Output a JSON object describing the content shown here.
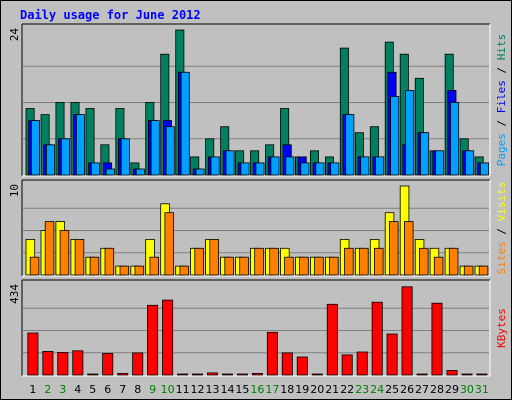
{
  "chart_data": {
    "type": "bar",
    "title": "Daily usage for June 2012",
    "categories": [
      "1",
      "2",
      "3",
      "4",
      "5",
      "6",
      "7",
      "8",
      "9",
      "10",
      "11",
      "12",
      "13",
      "14",
      "15",
      "16",
      "17",
      "18",
      "19",
      "20",
      "21",
      "22",
      "23",
      "24",
      "25",
      "26",
      "27",
      "28",
      "29",
      "30",
      "31"
    ],
    "weekend_days": [
      "2",
      "3",
      "9",
      "10",
      "16",
      "17",
      "23",
      "24",
      "30",
      "31"
    ],
    "panels": [
      {
        "id": "pages-files-hits",
        "ymax_label": "24",
        "ymax": 24,
        "right_label": [
          {
            "text": "Pages",
            "color": "#00a0ff"
          },
          {
            "text": " / ",
            "color": "#000000"
          },
          {
            "text": "Files",
            "color": "#0000ff"
          },
          {
            "text": " / ",
            "color": "#000000"
          },
          {
            "text": "Hits",
            "color": "#008060"
          }
        ],
        "series": [
          {
            "name": "Hits",
            "color": "#008060",
            "values": [
              11,
              10,
              12,
              12,
              11,
              5,
              11,
              2,
              12,
              20,
              24,
              3,
              6,
              8,
              4,
              4,
              5,
              11,
              3,
              4,
              3,
              21,
              7,
              8,
              22,
              20,
              16,
              4,
              20,
              6,
              3
            ]
          },
          {
            "name": "Files",
            "color": "#0000ff",
            "values": [
              9,
              5,
              6,
              10,
              2,
              2,
              6,
              1,
              9,
              9,
              17,
              1,
              3,
              4,
              2,
              2,
              3,
              5,
              3,
              2,
              2,
              10,
              3,
              3,
              17,
              5,
              7,
              4,
              14,
              4,
              2
            ]
          },
          {
            "name": "Pages",
            "color": "#00a0ff",
            "values": [
              9,
              5,
              6,
              10,
              2,
              1,
              6,
              1,
              9,
              8,
              17,
              1,
              3,
              4,
              2,
              2,
              3,
              3,
              2,
              2,
              2,
              10,
              3,
              3,
              13,
              14,
              7,
              4,
              12,
              4,
              2
            ]
          }
        ]
      },
      {
        "id": "visits-sites",
        "ymax_label": "10",
        "ymax": 10,
        "right_label": [
          {
            "text": "Sites",
            "color": "#ff8000"
          },
          {
            "text": " / ",
            "color": "#000000"
          },
          {
            "text": "Visits",
            "color": "#ffff00"
          }
        ],
        "series": [
          {
            "name": "Visits",
            "color": "#ffff00",
            "values": [
              4,
              5,
              6,
              4,
              2,
              3,
              1,
              1,
              4,
              8,
              1,
              3,
              4,
              2,
              2,
              3,
              3,
              3,
              2,
              2,
              2,
              4,
              3,
              4,
              7,
              10,
              4,
              3,
              3,
              1,
              1
            ]
          },
          {
            "name": "Sites",
            "color": "#ff8000",
            "values": [
              2,
              6,
              5,
              4,
              2,
              3,
              1,
              1,
              2,
              7,
              1,
              3,
              4,
              2,
              2,
              3,
              3,
              2,
              2,
              2,
              2,
              3,
              3,
              3,
              6,
              6,
              3,
              2,
              3,
              1,
              1
            ]
          }
        ]
      },
      {
        "id": "kbytes",
        "ymax_label": "434",
        "ymax": 434,
        "right_label": [
          {
            "text": "KBytes",
            "color": "#ff0000"
          }
        ],
        "series": [
          {
            "name": "KBytes",
            "color": "#ff0000",
            "values": [
              205,
              115,
              110,
              118,
              5,
              105,
              8,
              108,
              340,
              365,
              5,
              5,
              10,
              5,
              5,
              8,
              208,
              108,
              88,
              5,
              345,
              98,
              112,
              355,
              200,
              430,
              5,
              350,
              22,
              5,
              5
            ]
          }
        ]
      }
    ]
  }
}
